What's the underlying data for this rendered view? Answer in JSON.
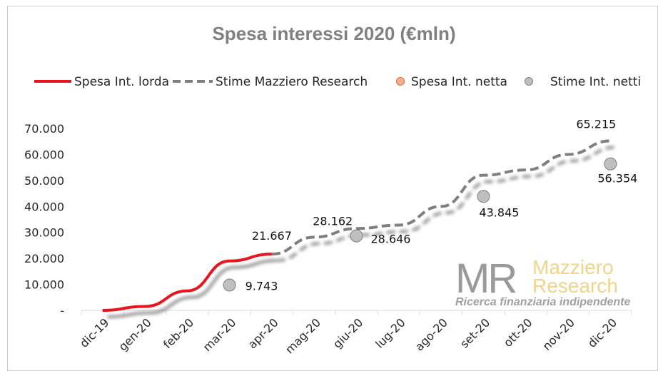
{
  "chart_data": {
    "type": "line",
    "title": "Spesa interessi 2020 (€mln)",
    "categories": [
      "dic-19",
      "gen-20",
      "feb-20",
      "mar-20",
      "apr-20",
      "mag-20",
      "giu-20",
      "lug-20",
      "ago-20",
      "set-20",
      "ott-20",
      "nov-20",
      "dic-20"
    ],
    "y_ticks": [
      "-",
      "10.000",
      "20.000",
      "30.000",
      "40.000",
      "50.000",
      "60.000",
      "70.000"
    ],
    "ylim": [
      0,
      70000
    ],
    "grid": false,
    "legend_position": "top",
    "series": [
      {
        "name": "Spesa Int. lorda",
        "style": "solid-line",
        "color": "#e8131d",
        "values": [
          0,
          1500,
          7500,
          19000,
          21667,
          null,
          null,
          null,
          null,
          null,
          null,
          null,
          null
        ]
      },
      {
        "name": "Stime Mazziero Research",
        "style": "dashed-line",
        "color": "#7f7f7f",
        "values": [
          null,
          null,
          null,
          null,
          21667,
          28162,
          31500,
          32800,
          40000,
          52000,
          54000,
          60000,
          65215
        ]
      },
      {
        "name": "Spesa Int. netta",
        "style": "marker",
        "color": "#f4b183",
        "values": [
          null,
          null,
          null,
          null,
          null,
          null,
          null,
          null,
          null,
          null,
          null,
          null,
          null
        ]
      },
      {
        "name": "Stime Int. netti",
        "style": "marker",
        "color": "#bfbfbf",
        "values": [
          null,
          null,
          null,
          9743,
          null,
          null,
          28646,
          null,
          null,
          43845,
          null,
          null,
          56354
        ]
      }
    ],
    "data_labels": [
      {
        "series": "Spesa Int. lorda",
        "category": "apr-20",
        "text": "21.667"
      },
      {
        "series": "Stime Mazziero Research",
        "category": "mag-20",
        "text": "28.162"
      },
      {
        "series": "Stime Mazziero Research",
        "category": "dic-20",
        "text": "65.215"
      },
      {
        "series": "Stime Int. netti",
        "category": "mar-20",
        "text": "9.743"
      },
      {
        "series": "Stime Int. netti",
        "category": "giu-20",
        "text": "28.646"
      },
      {
        "series": "Stime Int. netti",
        "category": "set-20",
        "text": "43.845"
      },
      {
        "series": "Stime Int. netti",
        "category": "dic-20",
        "text": "56.354"
      }
    ]
  },
  "watermark": {
    "monogram": "MR",
    "name_line1": "Mazziero",
    "name_line2": "Research",
    "tagline": "Ricerca finanziaria indipendente"
  }
}
